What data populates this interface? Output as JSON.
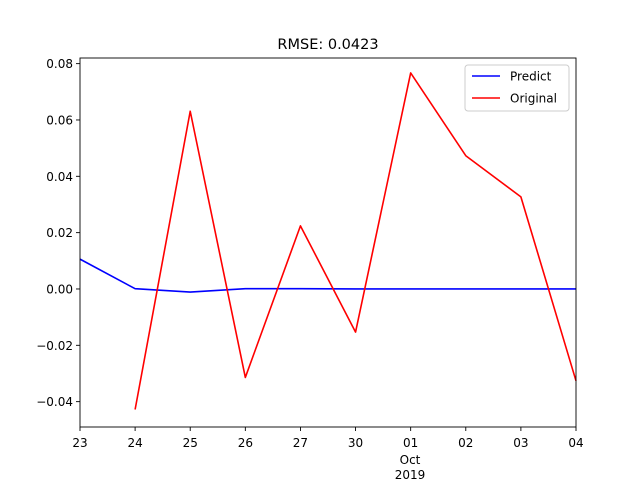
{
  "chart_data": {
    "type": "line",
    "title": "RMSE: 0.0423",
    "xlabel": "",
    "ylabel": "",
    "x": [
      "23",
      "24",
      "25",
      "26",
      "27",
      "30",
      "01",
      "02",
      "03",
      "04"
    ],
    "x_sublabels": {
      "month": "Oct",
      "year": "2019",
      "under_index": 6
    },
    "y_ticks": [
      "0.08",
      "0.06",
      "0.04",
      "0.02",
      "0.00",
      "−0.02",
      "−0.04"
    ],
    "y_tick_values": [
      0.08,
      0.06,
      0.04,
      0.02,
      0.0,
      -0.02,
      -0.04
    ],
    "ylim": [
      -0.049,
      0.082
    ],
    "grid": false,
    "legend_position": "upper-right",
    "series": [
      {
        "name": "Predict",
        "color": "#0000ff",
        "values": [
          0.0106,
          0.0001,
          -0.0011,
          0.0001,
          0.0001,
          0.0,
          0.0,
          0.0,
          0.0,
          0.0
        ]
      },
      {
        "name": "Original",
        "color": "#ff0000",
        "values": [
          null,
          -0.0428,
          0.0631,
          -0.0314,
          0.0224,
          -0.0153,
          0.0767,
          0.0473,
          0.0327,
          -0.0326
        ]
      }
    ]
  }
}
